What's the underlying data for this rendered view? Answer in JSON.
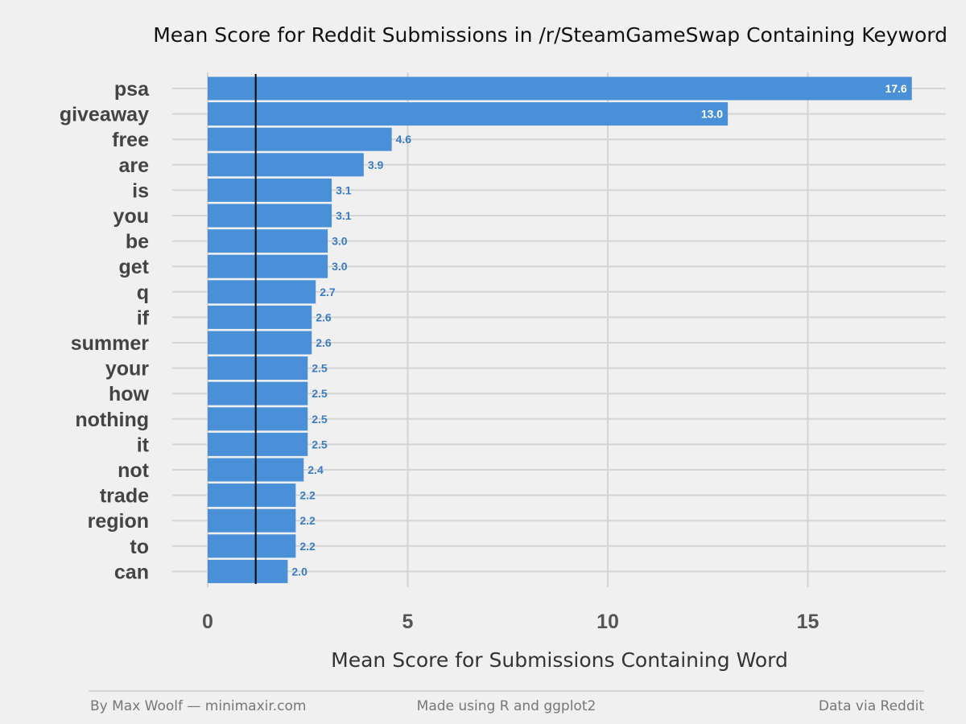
{
  "chart_data": {
    "type": "bar",
    "orientation": "horizontal",
    "title": "Mean Score for Reddit Submissions in /r/SteamGameSwap Containing Keyword",
    "xlabel": "Mean Score for Submissions Containing Word",
    "ylabel": "",
    "categories": [
      "psa",
      "giveaway",
      "free",
      "are",
      "is",
      "you",
      "be",
      "get",
      "q",
      "if",
      "summer",
      "your",
      "how",
      "nothing",
      "it",
      "not",
      "trade",
      "region",
      "to",
      "can"
    ],
    "values": [
      17.6,
      13.0,
      4.6,
      3.9,
      3.1,
      3.1,
      3.0,
      3.0,
      2.7,
      2.6,
      2.6,
      2.5,
      2.5,
      2.5,
      2.5,
      2.4,
      2.2,
      2.2,
      2.2,
      2.0
    ],
    "data_labels": [
      "17.6",
      "13.0",
      "4.6",
      "3.9",
      "3.1",
      "3.1",
      "3.0",
      "3.0",
      "2.7",
      "2.6",
      "2.6",
      "2.5",
      "2.5",
      "2.5",
      "2.5",
      "2.4",
      "2.2",
      "2.2",
      "2.2",
      "2.0"
    ],
    "x_ticks": [
      "0",
      "5",
      "10",
      "15"
    ],
    "x_tick_values": [
      0,
      5,
      10,
      15
    ],
    "xlim": [
      0,
      18.5
    ],
    "reference_line_value": 1.2,
    "grid": true,
    "legend": "none",
    "colors": {
      "bar": "#4a90d9",
      "background": "#f0f0f0",
      "grid": "#d4d4d4",
      "reference_line": "#000000",
      "label_inside": "#ffffff",
      "label_outside": "#3a7cc4"
    }
  },
  "footer": {
    "left": "By Max Woolf — minimaxir.com",
    "center": "Made using R and ggplot2",
    "right": "Data via Reddit"
  }
}
